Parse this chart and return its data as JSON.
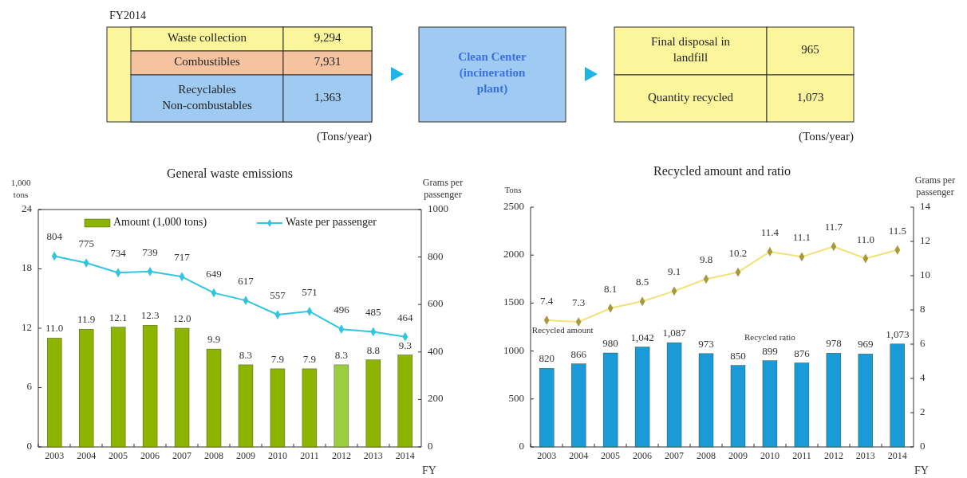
{
  "chart_data": [
    {
      "type": "other",
      "title": "FY2014",
      "annotations": [
        "Waste collection",
        "9,294",
        "Combustibles",
        "7,931",
        "Recyclables\nNon-combustables",
        "1,363",
        "Clean Center\n(incineration\nplant)",
        "Final disposal in\nlandfill",
        "965",
        "Quantity recycled",
        "1,073",
        "(Tons/year)",
        "(Tons/year)"
      ]
    },
    {
      "type": "bar",
      "title": "General waste emissions",
      "xlabel": "FY",
      "ylabel": "1,000 tons",
      "y2label": "Grams per passenger",
      "categories": [
        "2003",
        "2004",
        "2005",
        "2006",
        "2007",
        "2008",
        "2009",
        "2010",
        "2011",
        "2012",
        "2013",
        "2014"
      ],
      "ylim": [
        0,
        24
      ],
      "yticks": [
        0,
        6,
        12,
        18,
        24
      ],
      "y2lim": [
        0,
        1000
      ],
      "y2ticks": [
        0,
        200,
        400,
        600,
        800,
        1000
      ],
      "legend": "top",
      "series": [
        {
          "name": "Amount (1,000 tons)",
          "type": "bar",
          "color": "#8cb400",
          "colors": [
            "#8cb400",
            "#8cb400",
            "#8cb400",
            "#8cb400",
            "#8cb400",
            "#8cb400",
            "#8cb400",
            "#8cb400",
            "#8cb400",
            "#9ccc40",
            "#8cb400",
            "#8cb400"
          ],
          "values": [
            11.0,
            11.9,
            12.1,
            12.3,
            12.0,
            9.9,
            8.3,
            7.9,
            7.9,
            8.3,
            8.8,
            9.3
          ],
          "value_labels": [
            "11.0",
            "11.9",
            "12.1",
            "12.3",
            "12.0",
            "9.9",
            "8.3",
            "7.9",
            "7.9",
            "8.3",
            "8.8",
            "9.3"
          ]
        },
        {
          "name": "Waste per passenger",
          "type": "line",
          "axis": "y2",
          "color": "#33c4e0",
          "marker": "diamond",
          "values": [
            804,
            775,
            734,
            739,
            717,
            649,
            617,
            557,
            571,
            496,
            485,
            464
          ],
          "value_labels": [
            "804",
            "775",
            "734",
            "739",
            "717",
            "649",
            "617",
            "557",
            "571",
            "496",
            "485",
            "464"
          ]
        }
      ]
    },
    {
      "type": "bar",
      "title": "Recycled amount and ratio",
      "xlabel": "FY",
      "ylabel": "Tons",
      "y2label": "Grams per passenger",
      "categories": [
        "2003",
        "2004",
        "2005",
        "2006",
        "2007",
        "2008",
        "2009",
        "2010",
        "2011",
        "2012",
        "2013",
        "2014"
      ],
      "ylim": [
        0,
        2500
      ],
      "yticks": [
        0,
        500,
        1000,
        1500,
        2000,
        2500
      ],
      "y2lim": [
        0,
        14
      ],
      "y2ticks": [
        0,
        2,
        4,
        6,
        8,
        10,
        12,
        14
      ],
      "series": [
        {
          "name": "Recycled ratio",
          "type": "bar",
          "color": "#1a9ad6",
          "values": [
            820,
            866,
            980,
            1042,
            1087,
            973,
            850,
            899,
            876,
            978,
            969,
            1073
          ],
          "value_labels": [
            "820",
            "866",
            "980",
            "1,042",
            "1,087",
            "973",
            "850",
            "899",
            "876",
            "978",
            "969",
            "1,073"
          ]
        },
        {
          "name": "Recycled amount",
          "type": "line",
          "axis": "y2",
          "color": "#f2e27a",
          "marker": "diamond",
          "values": [
            7.4,
            7.3,
            8.1,
            8.5,
            9.1,
            9.8,
            10.2,
            11.4,
            11.1,
            11.7,
            11.0,
            11.5
          ],
          "value_labels": [
            "7.4",
            "7.3",
            "8.1",
            "8.5",
            "9.1",
            "9.8",
            "10.2",
            "11.4",
            "11.1",
            "11.7",
            "11.0",
            "11.5"
          ]
        }
      ]
    }
  ]
}
